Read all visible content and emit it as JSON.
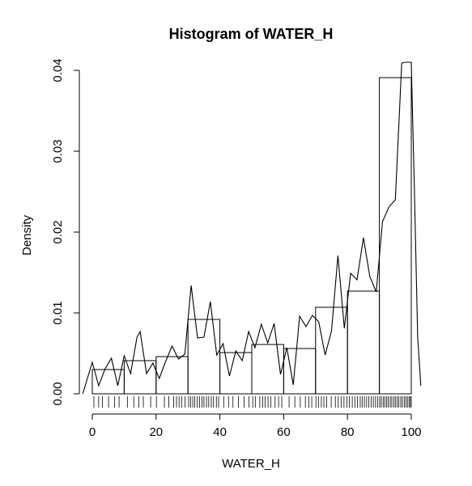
{
  "chart_data": {
    "type": "bar",
    "title": "Histogram of WATER_H",
    "xlabel": "WATER_H",
    "ylabel": "Density",
    "xlim": [
      0,
      100
    ],
    "ylim": [
      0,
      0.04
    ],
    "x_ticks": [
      "0",
      "20",
      "40",
      "60",
      "80",
      "100"
    ],
    "y_ticks": [
      "0.00",
      "0.01",
      "0.02",
      "0.03",
      "0.04"
    ],
    "bin_edges": [
      0,
      10,
      20,
      30,
      40,
      50,
      60,
      70,
      80,
      90,
      100
    ],
    "values": [
      0.003,
      0.0041,
      0.0046,
      0.0092,
      0.0051,
      0.0061,
      0.0056,
      0.0107,
      0.0127,
      0.0391
    ],
    "density_curve": {
      "x": [
        -3,
        0,
        2,
        4,
        6,
        8,
        10,
        12,
        14,
        15,
        17,
        19,
        21,
        23,
        25,
        27,
        29,
        31,
        33,
        35,
        37,
        39,
        41,
        43,
        45,
        47,
        49,
        51,
        53,
        55,
        57,
        59,
        61,
        63,
        65,
        67,
        69,
        71,
        73,
        75,
        77,
        79,
        81,
        83,
        85,
        87,
        89,
        91,
        93,
        95,
        97,
        98,
        99,
        100,
        101,
        102,
        103
      ],
      "y": [
        0.0,
        0.0039,
        0.001,
        0.0031,
        0.0044,
        0.001,
        0.0047,
        0.0025,
        0.007,
        0.0077,
        0.0025,
        0.0038,
        0.0019,
        0.004,
        0.0059,
        0.0043,
        0.0049,
        0.0134,
        0.0069,
        0.007,
        0.0114,
        0.0048,
        0.0062,
        0.0022,
        0.0053,
        0.0041,
        0.0077,
        0.0057,
        0.0086,
        0.0063,
        0.0087,
        0.0024,
        0.0057,
        0.0011,
        0.0096,
        0.0083,
        0.0097,
        0.0089,
        0.0048,
        0.0078,
        0.0171,
        0.0081,
        0.0149,
        0.0141,
        0.0193,
        0.0145,
        0.0126,
        0.0213,
        0.0231,
        0.024,
        0.0409,
        0.042,
        0.042,
        0.042,
        0.025,
        0.007,
        0.001
      ]
    },
    "rug": [
      0.5,
      2,
      3.2,
      5.1,
      7,
      8.4,
      11,
      13,
      14.6,
      16,
      18.3,
      20.1,
      22.6,
      24,
      25.5,
      26.4,
      27.2,
      28,
      29.1,
      30.2,
      30.8,
      31.5,
      32.1,
      32.9,
      33.6,
      34.4,
      35,
      35.8,
      36.5,
      37.3,
      38,
      38.9,
      39.6,
      41.2,
      42.7,
      44.1,
      45.8,
      47.6,
      49.1,
      50.3,
      51.1,
      52.5,
      53.4,
      54.2,
      55.1,
      56,
      57.3,
      58.4,
      59.4,
      61.7,
      63.5,
      65.2,
      66.8,
      67.9,
      68.8,
      70.1,
      70.9,
      71.8,
      72.6,
      73.5,
      74.9,
      76.2,
      77.1,
      78,
      78.9,
      79.8,
      80.6,
      81.5,
      82.3,
      83.1,
      84,
      84.6,
      85.3,
      86,
      86.7,
      87.4,
      88.1,
      88.8,
      89.5,
      90.1,
      90.6,
      91.2,
      91.7,
      92.3,
      92.8,
      93.4,
      93.9,
      94.5,
      95,
      95.6,
      96.1,
      96.7,
      97.2,
      97.8,
      98.3,
      98.8,
      99.3,
      99.7,
      100
    ]
  }
}
